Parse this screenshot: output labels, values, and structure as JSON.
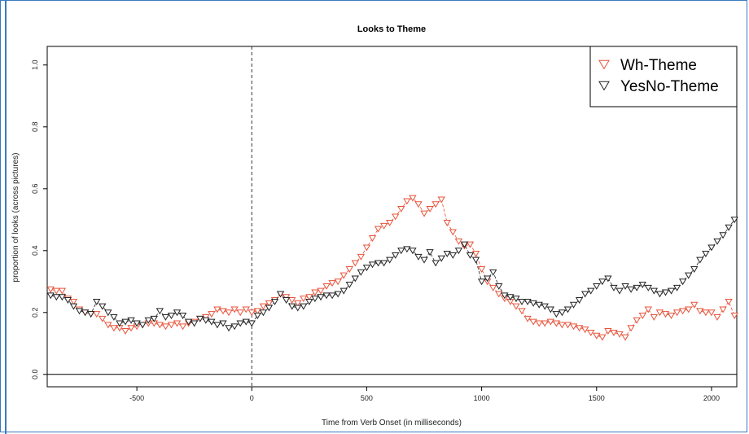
{
  "chart_data": {
    "type": "line",
    "title": "Looks to Theme",
    "xlabel": "Time from Verb Onset (in milliseconds)",
    "ylabel": "proportion of looks (across pictures)",
    "xlim": [
      -890,
      2110
    ],
    "ylim": [
      -0.04,
      1.06
    ],
    "x_ticks": [
      -500,
      0,
      500,
      1000,
      1500,
      2000
    ],
    "y_ticks": [
      0.0,
      0.2,
      0.4,
      0.6,
      0.8,
      1.0
    ],
    "x_tick_labels": [
      "-500",
      "0",
      "500",
      "1000",
      "1500",
      "2000"
    ],
    "y_tick_labels": [
      "0.0",
      "0.2",
      "0.4",
      "0.6",
      "0.8",
      "1.0"
    ],
    "reference_lines": {
      "vertical_dashed_x": 0,
      "horizontal_solid_y": 0
    },
    "legend_position": "top-right",
    "marker": "inverted-triangle",
    "x": [
      -900,
      -875,
      -850,
      -825,
      -800,
      -775,
      -750,
      -725,
      -700,
      -675,
      -650,
      -625,
      -600,
      -575,
      -550,
      -525,
      -500,
      -475,
      -450,
      -425,
      -400,
      -375,
      -350,
      -325,
      -300,
      -275,
      -250,
      -225,
      -200,
      -175,
      -150,
      -125,
      -100,
      -75,
      -50,
      -25,
      0,
      25,
      50,
      75,
      100,
      125,
      150,
      175,
      200,
      225,
      250,
      275,
      300,
      325,
      350,
      375,
      400,
      425,
      450,
      475,
      500,
      525,
      550,
      575,
      600,
      625,
      650,
      675,
      700,
      725,
      750,
      775,
      800,
      825,
      850,
      875,
      900,
      925,
      950,
      975,
      1000,
      1025,
      1050,
      1075,
      1100,
      1125,
      1150,
      1175,
      1200,
      1225,
      1250,
      1275,
      1300,
      1325,
      1350,
      1375,
      1400,
      1425,
      1450,
      1475,
      1500,
      1525,
      1550,
      1575,
      1600,
      1625,
      1650,
      1675,
      1700,
      1725,
      1750,
      1775,
      1800,
      1825,
      1850,
      1875,
      1900,
      1925,
      1950,
      1975,
      2000,
      2025,
      2050,
      2075,
      2100
    ],
    "series": [
      {
        "name": "Wh-Theme",
        "color": "#e8533a",
        "values": [
          0.27,
          0.275,
          0.27,
          0.27,
          0.245,
          0.235,
          0.21,
          0.2,
          0.195,
          0.195,
          0.18,
          0.16,
          0.15,
          0.15,
          0.14,
          0.15,
          0.155,
          0.16,
          0.165,
          0.165,
          0.16,
          0.155,
          0.16,
          0.165,
          0.155,
          0.165,
          0.17,
          0.18,
          0.185,
          0.195,
          0.21,
          0.205,
          0.2,
          0.21,
          0.2,
          0.21,
          0.2,
          0.205,
          0.22,
          0.23,
          0.24,
          0.26,
          0.25,
          0.24,
          0.23,
          0.245,
          0.25,
          0.265,
          0.27,
          0.285,
          0.295,
          0.3,
          0.32,
          0.34,
          0.36,
          0.38,
          0.41,
          0.44,
          0.47,
          0.48,
          0.49,
          0.51,
          0.535,
          0.56,
          0.57,
          0.55,
          0.52,
          0.535,
          0.55,
          0.565,
          0.49,
          0.46,
          0.43,
          0.415,
          0.42,
          0.39,
          0.34,
          0.3,
          0.28,
          0.26,
          0.245,
          0.235,
          0.22,
          0.205,
          0.18,
          0.17,
          0.165,
          0.165,
          0.17,
          0.165,
          0.16,
          0.16,
          0.155,
          0.15,
          0.145,
          0.135,
          0.125,
          0.12,
          0.14,
          0.135,
          0.13,
          0.12,
          0.15,
          0.175,
          0.19,
          0.21,
          0.185,
          0.2,
          0.195,
          0.19,
          0.2,
          0.205,
          0.21,
          0.225,
          0.205,
          0.2,
          0.2,
          0.185,
          0.21,
          0.235,
          0.19
        ]
      },
      {
        "name": "YesNo-Theme",
        "color": "#222222",
        "values": [
          0.26,
          0.255,
          0.25,
          0.25,
          0.24,
          0.22,
          0.205,
          0.2,
          0.195,
          0.235,
          0.22,
          0.2,
          0.185,
          0.165,
          0.17,
          0.175,
          0.165,
          0.16,
          0.175,
          0.18,
          0.205,
          0.185,
          0.19,
          0.2,
          0.19,
          0.17,
          0.165,
          0.18,
          0.175,
          0.17,
          0.16,
          0.165,
          0.15,
          0.155,
          0.165,
          0.17,
          0.165,
          0.19,
          0.2,
          0.215,
          0.235,
          0.26,
          0.24,
          0.22,
          0.215,
          0.22,
          0.235,
          0.245,
          0.25,
          0.255,
          0.255,
          0.26,
          0.27,
          0.29,
          0.31,
          0.33,
          0.345,
          0.355,
          0.36,
          0.36,
          0.37,
          0.385,
          0.4,
          0.405,
          0.4,
          0.38,
          0.37,
          0.395,
          0.36,
          0.375,
          0.39,
          0.385,
          0.4,
          0.42,
          0.385,
          0.37,
          0.3,
          0.31,
          0.33,
          0.285,
          0.255,
          0.25,
          0.245,
          0.235,
          0.235,
          0.23,
          0.225,
          0.22,
          0.21,
          0.195,
          0.2,
          0.21,
          0.225,
          0.24,
          0.26,
          0.27,
          0.285,
          0.3,
          0.31,
          0.28,
          0.27,
          0.285,
          0.275,
          0.28,
          0.29,
          0.28,
          0.27,
          0.26,
          0.265,
          0.27,
          0.28,
          0.3,
          0.32,
          0.34,
          0.37,
          0.39,
          0.41,
          0.43,
          0.45,
          0.475,
          0.5
        ]
      }
    ]
  }
}
